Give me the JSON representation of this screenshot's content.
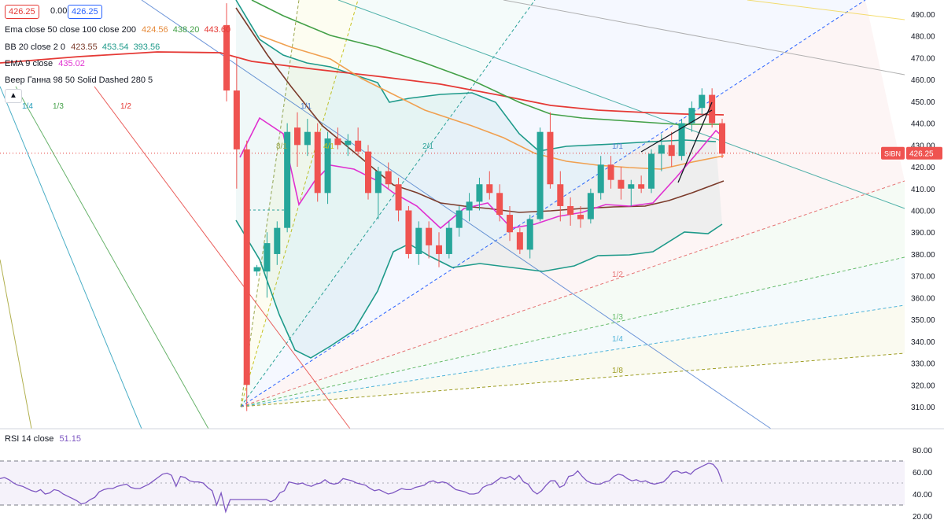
{
  "symbol_tag": "SIBN",
  "last_price": "426.25",
  "price_boxes": {
    "left": "426.25",
    "mid": "0.00",
    "right": "426.25"
  },
  "legend": [
    {
      "name": "Ema close 50 close 100 close 200",
      "values": [
        "424.56",
        "438.20",
        "443.60"
      ],
      "colors": [
        "#f0a050",
        "#43a047",
        "#e53935"
      ]
    },
    {
      "name": "BB 20 close 2 0",
      "values": [
        "423.55",
        "453.54",
        "393.56"
      ],
      "colors": [
        "#7b3b2b",
        "#1e9a8a",
        "#1e9a8a"
      ]
    },
    {
      "name": "EMA 9 close",
      "values": [
        "435.02"
      ],
      "colors": [
        "#e030d0"
      ]
    },
    {
      "name": "Веер Ганна 98 50 Solid Dashed 280 5",
      "values": [],
      "colors": []
    }
  ],
  "collapse_icon": "chevron-up-icon",
  "rsi": {
    "name": "RSI 14 close",
    "value": "51.15",
    "color": "#7e57c2",
    "axis": [
      "80.00",
      "60.00",
      "40.00",
      "20.00"
    ],
    "values": [
      54,
      55,
      53,
      50,
      48,
      47,
      45,
      43,
      42,
      44,
      40,
      41,
      44,
      43,
      40,
      38,
      36,
      34,
      31,
      32,
      35,
      37,
      42,
      44,
      45,
      45,
      47,
      48,
      49,
      46,
      45,
      45,
      47,
      49,
      52,
      55,
      58,
      59,
      57,
      47,
      56,
      55,
      52,
      51,
      51,
      50,
      46,
      43,
      30,
      41,
      24,
      35,
      35,
      35,
      35,
      35,
      35,
      35,
      35,
      35,
      33,
      35,
      41,
      43,
      51,
      50,
      49,
      50,
      48,
      47,
      49,
      50,
      53,
      50,
      49,
      50,
      54,
      53,
      52,
      50,
      49,
      48,
      45,
      43,
      44,
      42,
      40,
      41,
      43,
      45,
      44,
      44,
      46,
      47,
      48,
      51,
      52,
      50,
      51,
      50,
      47,
      44,
      43,
      42,
      40,
      40,
      41,
      46,
      48,
      49,
      52,
      55,
      54,
      56,
      53,
      57,
      51,
      49,
      43,
      40,
      43,
      48,
      52,
      52,
      46,
      48,
      56,
      57,
      61,
      56,
      52,
      50,
      49,
      49,
      51,
      52,
      56,
      58,
      57,
      54,
      52,
      53,
      51,
      52,
      50,
      49,
      50,
      51,
      55,
      60,
      61,
      59,
      60,
      58,
      62,
      64,
      66,
      68,
      67,
      62,
      51
    ]
  },
  "price_axis": [
    "490.00",
    "480.00",
    "470.00",
    "460.00",
    "450.00",
    "440.00",
    "430.00",
    "420.00",
    "410.00",
    "400.00",
    "390.00",
    "380.00",
    "370.00",
    "360.00",
    "350.00",
    "340.00",
    "330.00",
    "320.00",
    "310.00"
  ],
  "fan_labels": [
    {
      "text": "1/4",
      "color": "#1e9ab8"
    },
    {
      "text": "1/3",
      "color": "#43a047"
    },
    {
      "text": "1/2",
      "color": "#e53935"
    },
    {
      "text": "1/1",
      "color": "#4a7bd0"
    },
    {
      "text": "8/1",
      "color": "#9aa64b"
    },
    {
      "text": "4/1",
      "color": "#c7c21f"
    },
    {
      "text": "2/1",
      "color": "#2aa198"
    },
    {
      "text": "1/1",
      "color": "#4a7bd0"
    },
    {
      "text": "1/2",
      "color": "#e57373"
    },
    {
      "text": "1/3",
      "color": "#66bb6a"
    },
    {
      "text": "1/4",
      "color": "#4fb3d9"
    },
    {
      "text": "1/8",
      "color": "#9e9d24"
    }
  ],
  "chart_data": {
    "type": "candlestick",
    "y_range": [
      302,
      495
    ],
    "candles": [
      {
        "o": 485,
        "h": 495,
        "l": 450,
        "c": 455
      },
      {
        "o": 455,
        "h": 470,
        "l": 410,
        "c": 428
      },
      {
        "o": 428,
        "h": 432,
        "l": 308,
        "c": 320
      },
      {
        "o": 372,
        "h": 375,
        "l": 370,
        "c": 374
      },
      {
        "o": 372,
        "h": 390,
        "l": 360,
        "c": 385
      },
      {
        "o": 380,
        "h": 395,
        "l": 375,
        "c": 392
      },
      {
        "o": 392,
        "h": 440,
        "l": 390,
        "c": 436
      },
      {
        "o": 438,
        "h": 445,
        "l": 420,
        "c": 430
      },
      {
        "o": 430,
        "h": 442,
        "l": 425,
        "c": 436
      },
      {
        "o": 436,
        "h": 440,
        "l": 404,
        "c": 408
      },
      {
        "o": 408,
        "h": 436,
        "l": 403,
        "c": 433
      },
      {
        "o": 433,
        "h": 438,
        "l": 428,
        "c": 430
      },
      {
        "o": 430,
        "h": 435,
        "l": 425,
        "c": 432
      },
      {
        "o": 432,
        "h": 438,
        "l": 425,
        "c": 427
      },
      {
        "o": 427,
        "h": 430,
        "l": 405,
        "c": 408
      },
      {
        "o": 408,
        "h": 420,
        "l": 396,
        "c": 418
      },
      {
        "o": 418,
        "h": 422,
        "l": 410,
        "c": 412
      },
      {
        "o": 412,
        "h": 415,
        "l": 395,
        "c": 400
      },
      {
        "o": 400,
        "h": 402,
        "l": 378,
        "c": 380
      },
      {
        "o": 380,
        "h": 395,
        "l": 375,
        "c": 392
      },
      {
        "o": 392,
        "h": 395,
        "l": 378,
        "c": 384
      },
      {
        "o": 384,
        "h": 390,
        "l": 374,
        "c": 380
      },
      {
        "o": 380,
        "h": 395,
        "l": 378,
        "c": 392
      },
      {
        "o": 392,
        "h": 402,
        "l": 388,
        "c": 400
      },
      {
        "o": 400,
        "h": 408,
        "l": 395,
        "c": 404
      },
      {
        "o": 404,
        "h": 415,
        "l": 400,
        "c": 412
      },
      {
        "o": 412,
        "h": 418,
        "l": 405,
        "c": 408
      },
      {
        "o": 408,
        "h": 412,
        "l": 395,
        "c": 398
      },
      {
        "o": 398,
        "h": 402,
        "l": 386,
        "c": 390
      },
      {
        "o": 390,
        "h": 392,
        "l": 380,
        "c": 382
      },
      {
        "o": 382,
        "h": 398,
        "l": 378,
        "c": 396
      },
      {
        "o": 396,
        "h": 438,
        "l": 395,
        "c": 436
      },
      {
        "o": 436,
        "h": 445,
        "l": 410,
        "c": 412
      },
      {
        "o": 412,
        "h": 418,
        "l": 395,
        "c": 402
      },
      {
        "o": 402,
        "h": 406,
        "l": 393,
        "c": 398
      },
      {
        "o": 398,
        "h": 402,
        "l": 392,
        "c": 396
      },
      {
        "o": 396,
        "h": 410,
        "l": 394,
        "c": 408
      },
      {
        "o": 408,
        "h": 425,
        "l": 405,
        "c": 421
      },
      {
        "o": 421,
        "h": 425,
        "l": 410,
        "c": 414
      },
      {
        "o": 414,
        "h": 420,
        "l": 405,
        "c": 410
      },
      {
        "o": 410,
        "h": 414,
        "l": 402,
        "c": 412
      },
      {
        "o": 412,
        "h": 416,
        "l": 408,
        "c": 410
      },
      {
        "o": 410,
        "h": 428,
        "l": 408,
        "c": 426
      },
      {
        "o": 426,
        "h": 435,
        "l": 418,
        "c": 430
      },
      {
        "o": 430,
        "h": 436,
        "l": 420,
        "c": 425
      },
      {
        "o": 425,
        "h": 442,
        "l": 423,
        "c": 440
      },
      {
        "o": 440,
        "h": 450,
        "l": 436,
        "c": 447
      },
      {
        "o": 447,
        "h": 456,
        "l": 444,
        "c": 453
      },
      {
        "o": 453,
        "h": 456,
        "l": 438,
        "c": 440
      },
      {
        "o": 440,
        "h": 442,
        "l": 424,
        "c": 426
      }
    ]
  }
}
